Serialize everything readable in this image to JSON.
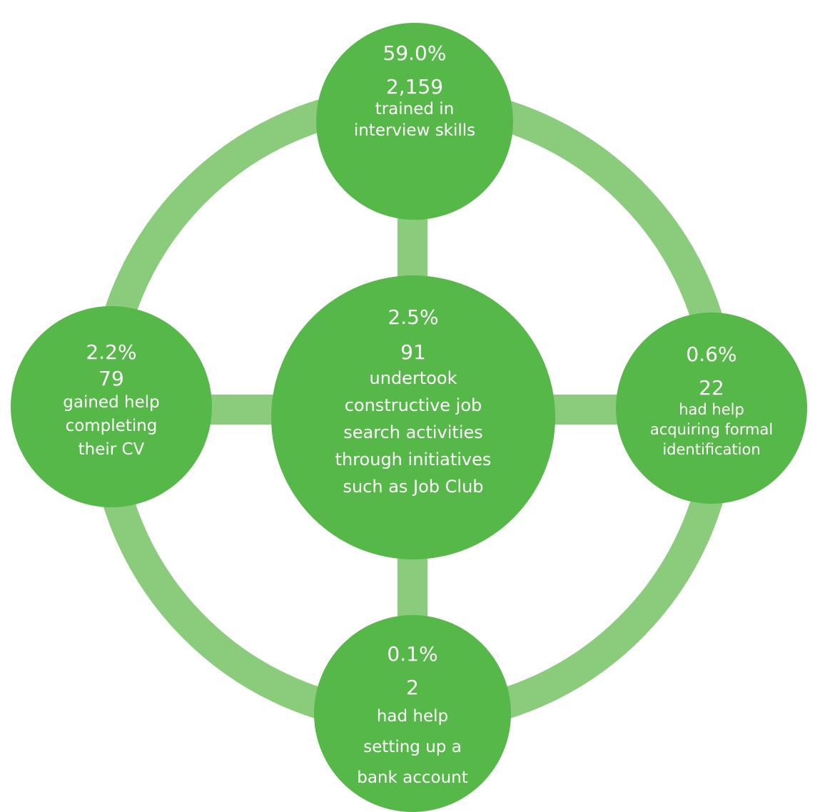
{
  "colors": {
    "node_fill": "#57b84a",
    "connector_fill": "#8acc7c",
    "text": "#ffffff"
  },
  "nodes": {
    "top": {
      "percent": "59.0%",
      "count": "2,159",
      "lines": [
        "trained in",
        "interview skills"
      ]
    },
    "center": {
      "percent": "2.5%",
      "count": "91",
      "lines": [
        "undertook",
        "constructive job",
        "search activities",
        "through initiatives",
        "such as Job Club"
      ]
    },
    "left": {
      "percent": "2.2%",
      "count": "79",
      "lines": [
        "gained help",
        "completing",
        "their CV"
      ]
    },
    "right": {
      "percent": "0.6%",
      "count": "22",
      "lines": [
        "had help",
        "acquiring formal",
        "identification"
      ]
    },
    "bottom": {
      "percent": "0.1%",
      "count": "2",
      "lines": [
        "had help",
        "setting up a",
        "bank account"
      ]
    }
  }
}
